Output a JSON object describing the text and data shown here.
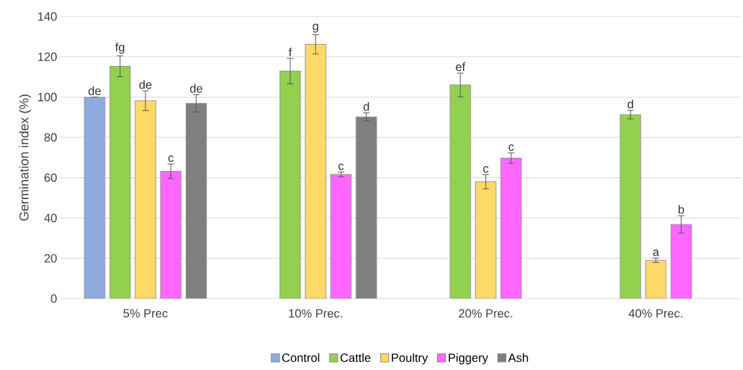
{
  "chart_data": {
    "type": "bar",
    "ylabel": "Germination index (%)",
    "categories": [
      "5% Prec",
      "10% Prec.",
      "20% Prec.",
      "40% Prec."
    ],
    "ylim": [
      0,
      140
    ],
    "yticks": [
      0,
      20,
      40,
      60,
      80,
      100,
      120,
      140
    ],
    "grid": "y",
    "legend": "bottom",
    "series": [
      {
        "name": "Control",
        "color": "#8faadc",
        "values": [
          100,
          null,
          null,
          null
        ],
        "errors": [
          0,
          null,
          null,
          null
        ],
        "value_labels": [
          "de",
          null,
          null,
          null
        ]
      },
      {
        "name": "Cattle",
        "color": "#92d050",
        "values": [
          115.3,
          112.9,
          106,
          91.3
        ],
        "errors": [
          5.2,
          6.3,
          5.9,
          2.1
        ],
        "value_labels": [
          "fg",
          "f",
          "ef",
          "d"
        ]
      },
      {
        "name": "Poultry",
        "color": "#ffd966",
        "values": [
          98.2,
          126.2,
          58,
          19
        ],
        "errors": [
          4.9,
          4.8,
          3.5,
          1.1
        ],
        "value_labels": [
          "de",
          "g",
          "c",
          "a"
        ]
      },
      {
        "name": "Piggery",
        "color": "#ff66ff",
        "values": [
          63.2,
          61.6,
          69.7,
          36.8
        ],
        "errors": [
          3.6,
          1.2,
          2.6,
          4.3
        ],
        "value_labels": [
          "c",
          "c",
          "c",
          "b"
        ]
      },
      {
        "name": "Ash",
        "color": "#7f7f7f",
        "values": [
          96.9,
          90.2,
          null,
          null
        ],
        "errors": [
          4.3,
          2,
          null,
          null
        ],
        "value_labels": [
          "de",
          "d",
          null,
          null
        ]
      }
    ]
  }
}
